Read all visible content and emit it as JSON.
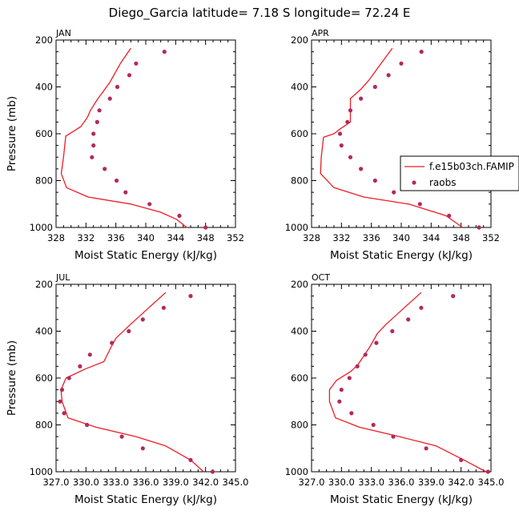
{
  "suptitle": "Diego_Garcia   latitude= 7.18 S longitude= 72.24 E",
  "colors": {
    "model": "#ee1c25",
    "obs": "#b22a5e",
    "axis": "#000000"
  },
  "legend": {
    "model_label": "f.e15b03ch.FAMIP",
    "obs_label": "raobs"
  },
  "chart_data": [
    {
      "type": "line",
      "panel": "JAN",
      "title": "JAN",
      "xlabel": "Moist Static Energy (kJ/kg)",
      "ylabel": "Pressure (mb)",
      "xlim": [
        328,
        352
      ],
      "ylim": [
        200,
        1000
      ],
      "xticks": [
        328,
        332,
        336,
        340,
        344,
        348,
        352
      ],
      "xtick_labels": [
        "328",
        "332",
        "336",
        "340",
        "344",
        "348",
        "352"
      ],
      "yticks": [
        200,
        400,
        600,
        800,
        1000
      ],
      "ytick_labels": [
        "200",
        "400",
        "600",
        "800",
        "1000"
      ],
      "series": [
        {
          "name": "f.e15b03ch.FAMIP",
          "kind": "line",
          "x": [
            338.0,
            336.6,
            335.2,
            334.3,
            333.6,
            332.6,
            332.2,
            331.3,
            329.3,
            329.0,
            328.7,
            329.4,
            332.3,
            338.0,
            342.0,
            344.1,
            345.5
          ],
          "y": [
            235,
            300,
            380,
            420,
            450,
            500,
            530,
            570,
            610,
            700,
            770,
            830,
            870,
            900,
            935,
            965,
            1000
          ]
        },
        {
          "name": "raobs",
          "kind": "scatter",
          "x": [
            342.5,
            338.7,
            337.8,
            336.2,
            335.2,
            333.8,
            333.5,
            333.0,
            333.0,
            332.8,
            334.5,
            336.1,
            337.3,
            340.5,
            344.5,
            348.0
          ],
          "y": [
            250,
            300,
            350,
            400,
            450,
            500,
            550,
            600,
            650,
            700,
            750,
            800,
            850,
            900,
            950,
            1000
          ]
        }
      ]
    },
    {
      "type": "line",
      "panel": "APR",
      "title": "APR",
      "xlabel": "Moist Static Energy (kJ/kg)",
      "ylabel": "",
      "xlim": [
        328,
        352
      ],
      "ylim": [
        200,
        1000
      ],
      "xticks": [
        328,
        332,
        336,
        340,
        344,
        348,
        352
      ],
      "xtick_labels": [
        "328",
        "332",
        "336",
        "340",
        "344",
        "348",
        "352"
      ],
      "yticks": [
        200,
        400,
        600,
        800,
        1000
      ],
      "ytick_labels": [
        "200",
        "400",
        "600",
        "800",
        "1000"
      ],
      "series": [
        {
          "name": "f.e15b03ch.FAMIP",
          "kind": "line",
          "x": [
            338.8,
            337.3,
            335.7,
            334.6,
            333.2,
            333.2,
            331.8,
            331.0,
            329.6,
            329.3,
            329.2,
            331.0,
            335.0,
            341.0,
            346.0,
            348.2
          ],
          "y": [
            235,
            300,
            370,
            410,
            450,
            550,
            580,
            600,
            615,
            700,
            770,
            830,
            870,
            900,
            950,
            1000
          ]
        },
        {
          "name": "raobs",
          "kind": "scatter",
          "x": [
            342.7,
            340.0,
            338.3,
            336.5,
            334.6,
            333.2,
            332.8,
            331.8,
            332.0,
            333.2,
            334.6,
            336.5,
            339.0,
            342.5,
            346.4,
            350.4
          ],
          "y": [
            250,
            300,
            350,
            400,
            450,
            500,
            550,
            600,
            650,
            700,
            750,
            800,
            850,
            900,
            950,
            1000
          ]
        }
      ]
    },
    {
      "type": "line",
      "panel": "JUL",
      "title": "JUL",
      "xlabel": "Moist Static Energy (kJ/kg)",
      "ylabel": "Pressure (mb)",
      "xlim": [
        327.0,
        345.0
      ],
      "ylim": [
        200,
        1000
      ],
      "xticks": [
        327.0,
        330.0,
        333.0,
        336.0,
        339.0,
        342.0,
        345.0
      ],
      "xtick_labels": [
        "327.0",
        "330.0",
        "333.0",
        "336.0",
        "339.0",
        "342.0",
        "345.0"
      ],
      "yticks": [
        200,
        400,
        600,
        800,
        1000
      ],
      "ytick_labels": [
        "200",
        "400",
        "600",
        "800",
        "1000"
      ],
      "series": [
        {
          "name": "f.e15b03ch.FAMIP",
          "kind": "line",
          "x": [
            338.0,
            336.3,
            334.5,
            333.0,
            332.5,
            331.8,
            330.0,
            328.0,
            327.5,
            327.6,
            328.2,
            331.0,
            335.0,
            338.0,
            340.5,
            341.8
          ],
          "y": [
            235,
            300,
            370,
            430,
            470,
            530,
            560,
            600,
            650,
            700,
            770,
            810,
            850,
            890,
            950,
            1000
          ]
        },
        {
          "name": "raobs",
          "kind": "scatter",
          "x": [
            340.5,
            337.8,
            335.7,
            334.3,
            332.6,
            330.4,
            329.4,
            328.3,
            327.6,
            327.4,
            327.8,
            330.1,
            333.6,
            335.7,
            340.5,
            342.7
          ],
          "y": [
            250,
            300,
            350,
            400,
            450,
            500,
            550,
            600,
            650,
            700,
            750,
            800,
            850,
            900,
            950,
            1000
          ]
        }
      ]
    },
    {
      "type": "line",
      "panel": "OCT",
      "title": "OCT",
      "xlabel": "Moist Static Energy (kJ/kg)",
      "ylabel": "",
      "xlim": [
        327.0,
        345.0
      ],
      "ylim": [
        200,
        1000
      ],
      "xticks": [
        327.0,
        330.0,
        333.0,
        336.0,
        339.0,
        342.0,
        345.0
      ],
      "xtick_labels": [
        "327.0",
        "330.0",
        "333.0",
        "336.0",
        "339.0",
        "342.0",
        "345.0"
      ],
      "yticks": [
        200,
        400,
        600,
        800,
        1000
      ],
      "ytick_labels": [
        "200",
        "400",
        "600",
        "800",
        "1000"
      ],
      "series": [
        {
          "name": "f.e15b03ch.FAMIP",
          "kind": "line",
          "x": [
            338.0,
            336.3,
            334.5,
            333.6,
            333.2,
            332.8,
            331.7,
            331.0,
            329.5,
            328.8,
            328.8,
            329.4,
            331.8,
            335.8,
            339.5,
            342.3,
            344.5
          ],
          "y": [
            235,
            300,
            370,
            410,
            440,
            470,
            540,
            570,
            610,
            650,
            700,
            770,
            810,
            850,
            890,
            950,
            1000
          ]
        },
        {
          "name": "raobs",
          "kind": "scatter",
          "x": [
            341.2,
            338.0,
            336.7,
            335.1,
            333.5,
            332.4,
            331.6,
            330.8,
            330.0,
            329.8,
            331.0,
            333.2,
            335.2,
            338.5,
            342.0,
            344.7
          ],
          "y": [
            250,
            300,
            350,
            400,
            450,
            500,
            550,
            600,
            650,
            700,
            750,
            800,
            850,
            900,
            950,
            1000
          ]
        }
      ]
    }
  ]
}
